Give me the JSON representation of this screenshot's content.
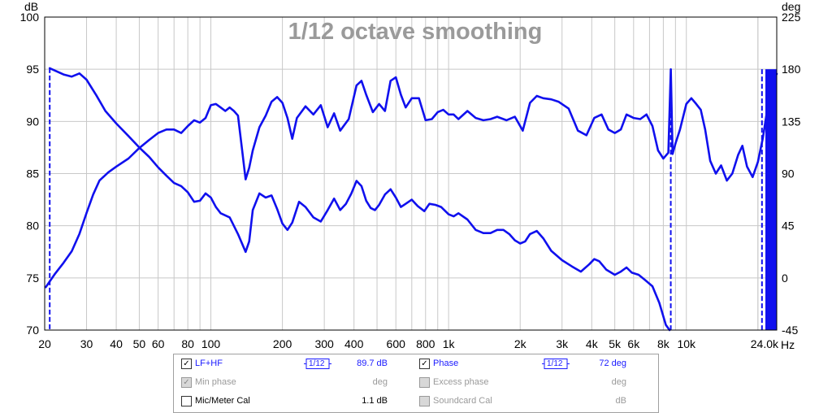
{
  "chart_data": {
    "type": "line",
    "title": "1/12 octave smoothing",
    "x_unit": "Hz",
    "y_left_unit": "dB",
    "y_right_unit": "deg",
    "xlim": [
      20,
      24000
    ],
    "x_scale": "log",
    "ylim_left": [
      70,
      100
    ],
    "ylim_right": [
      -45,
      225
    ],
    "grid": true,
    "x_ticks": [
      {
        "v": 20,
        "label": "20"
      },
      {
        "v": 30,
        "label": "30"
      },
      {
        "v": 40,
        "label": "40"
      },
      {
        "v": 50,
        "label": "50"
      },
      {
        "v": 60,
        "label": "60"
      },
      {
        "v": 80,
        "label": "80"
      },
      {
        "v": 100,
        "label": "100"
      },
      {
        "v": 200,
        "label": "200"
      },
      {
        "v": 300,
        "label": "300"
      },
      {
        "v": 400,
        "label": "400"
      },
      {
        "v": 600,
        "label": "600"
      },
      {
        "v": 800,
        "label": "800"
      },
      {
        "v": 1000,
        "label": "1k"
      },
      {
        "v": 2000,
        "label": "2k"
      },
      {
        "v": 3000,
        "label": "3k"
      },
      {
        "v": 4000,
        "label": "4k"
      },
      {
        "v": 5000,
        "label": "5k"
      },
      {
        "v": 6000,
        "label": "6k"
      },
      {
        "v": 8000,
        "label": "8k"
      },
      {
        "v": 10000,
        "label": "10k"
      },
      {
        "v": 24000,
        "label": "24.0k"
      }
    ],
    "y_left_ticks": [
      70,
      75,
      80,
      85,
      90,
      95,
      100
    ],
    "y_right_ticks": [
      -45,
      0,
      45,
      90,
      135,
      180,
      225
    ],
    "series": [
      {
        "name": "LF+HF",
        "axis": "left",
        "color": "#1010ee",
        "points": [
          [
            21,
            95.1
          ],
          [
            24,
            94.5
          ],
          [
            26,
            94.3
          ],
          [
            28,
            94.6
          ],
          [
            30,
            94.0
          ],
          [
            33,
            92.5
          ],
          [
            36,
            91.0
          ],
          [
            40,
            89.8
          ],
          [
            45,
            88.6
          ],
          [
            50,
            87.5
          ],
          [
            55,
            86.6
          ],
          [
            60,
            85.6
          ],
          [
            65,
            84.8
          ],
          [
            70,
            84.1
          ],
          [
            75,
            83.8
          ],
          [
            80,
            83.2
          ],
          [
            85,
            82.3
          ],
          [
            90,
            82.4
          ],
          [
            95,
            83.1
          ],
          [
            100,
            82.7
          ],
          [
            105,
            81.8
          ],
          [
            110,
            81.2
          ],
          [
            120,
            80.8
          ],
          [
            130,
            79.2
          ],
          [
            140,
            77.5
          ],
          [
            145,
            78.5
          ],
          [
            150,
            81.5
          ],
          [
            160,
            83.1
          ],
          [
            170,
            82.7
          ],
          [
            180,
            82.9
          ],
          [
            190,
            81.6
          ],
          [
            200,
            80.2
          ],
          [
            210,
            79.6
          ],
          [
            220,
            80.3
          ],
          [
            235,
            82.3
          ],
          [
            250,
            81.8
          ],
          [
            270,
            80.8
          ],
          [
            290,
            80.4
          ],
          [
            310,
            81.5
          ],
          [
            330,
            82.6
          ],
          [
            350,
            81.5
          ],
          [
            370,
            82.1
          ],
          [
            390,
            83.1
          ],
          [
            410,
            84.3
          ],
          [
            430,
            83.8
          ],
          [
            450,
            82.4
          ],
          [
            470,
            81.7
          ],
          [
            490,
            81.5
          ],
          [
            510,
            82.0
          ],
          [
            540,
            83.0
          ],
          [
            570,
            83.5
          ],
          [
            600,
            82.7
          ],
          [
            630,
            81.8
          ],
          [
            660,
            82.1
          ],
          [
            700,
            82.5
          ],
          [
            740,
            81.9
          ],
          [
            790,
            81.4
          ],
          [
            830,
            82.1
          ],
          [
            880,
            82.0
          ],
          [
            930,
            81.8
          ],
          [
            1000,
            81.1
          ],
          [
            1050,
            80.9
          ],
          [
            1100,
            81.2
          ],
          [
            1200,
            80.6
          ],
          [
            1300,
            79.6
          ],
          [
            1400,
            79.3
          ],
          [
            1500,
            79.3
          ],
          [
            1600,
            79.6
          ],
          [
            1700,
            79.6
          ],
          [
            1800,
            79.2
          ],
          [
            1900,
            78.6
          ],
          [
            2000,
            78.3
          ],
          [
            2100,
            78.5
          ],
          [
            2200,
            79.2
          ],
          [
            2350,
            79.5
          ],
          [
            2500,
            78.8
          ],
          [
            2700,
            77.6
          ],
          [
            3000,
            76.7
          ],
          [
            3300,
            76.1
          ],
          [
            3600,
            75.6
          ],
          [
            3900,
            76.3
          ],
          [
            4100,
            76.8
          ],
          [
            4300,
            76.6
          ],
          [
            4600,
            75.8
          ],
          [
            5000,
            75.3
          ],
          [
            5300,
            75.6
          ],
          [
            5600,
            76.0
          ],
          [
            5900,
            75.5
          ],
          [
            6300,
            75.3
          ],
          [
            6700,
            74.8
          ],
          [
            7200,
            74.2
          ],
          [
            7700,
            72.6
          ],
          [
            8200,
            70.5
          ],
          [
            8500,
            70.0
          ]
        ]
      },
      {
        "name": "Phase",
        "axis": "right",
        "color": "#1010ee",
        "points": [
          [
            20.2,
            -8
          ],
          [
            22,
            3
          ],
          [
            24,
            13
          ],
          [
            26,
            23
          ],
          [
            28,
            38
          ],
          [
            30,
            56
          ],
          [
            32,
            72
          ],
          [
            34,
            84
          ],
          [
            37,
            91
          ],
          [
            40,
            96
          ],
          [
            45,
            103
          ],
          [
            50,
            112
          ],
          [
            55,
            119
          ],
          [
            60,
            125
          ],
          [
            65,
            128
          ],
          [
            70,
            128
          ],
          [
            75,
            125
          ],
          [
            80,
            131
          ],
          [
            85,
            136
          ],
          [
            90,
            134
          ],
          [
            95,
            138
          ],
          [
            100,
            149
          ],
          [
            105,
            150
          ],
          [
            110,
            147
          ],
          [
            115,
            144
          ],
          [
            120,
            147
          ],
          [
            125,
            144
          ],
          [
            130,
            140
          ],
          [
            135,
            112
          ],
          [
            140,
            85
          ],
          [
            145,
            95
          ],
          [
            150,
            110
          ],
          [
            160,
            130
          ],
          [
            170,
            140
          ],
          [
            180,
            152
          ],
          [
            190,
            156
          ],
          [
            200,
            151
          ],
          [
            210,
            138
          ],
          [
            220,
            120
          ],
          [
            230,
            138
          ],
          [
            250,
            148
          ],
          [
            270,
            141
          ],
          [
            290,
            149
          ],
          [
            310,
            130
          ],
          [
            330,
            142
          ],
          [
            350,
            127
          ],
          [
            380,
            137
          ],
          [
            410,
            166
          ],
          [
            430,
            170
          ],
          [
            450,
            158
          ],
          [
            480,
            143
          ],
          [
            510,
            150
          ],
          [
            540,
            144
          ],
          [
            570,
            170
          ],
          [
            600,
            173
          ],
          [
            630,
            158
          ],
          [
            660,
            147
          ],
          [
            700,
            155
          ],
          [
            750,
            155
          ],
          [
            800,
            136
          ],
          [
            850,
            137
          ],
          [
            900,
            143
          ],
          [
            950,
            145
          ],
          [
            1000,
            141
          ],
          [
            1050,
            141
          ],
          [
            1100,
            137
          ],
          [
            1200,
            144
          ],
          [
            1300,
            138
          ],
          [
            1400,
            136
          ],
          [
            1500,
            137
          ],
          [
            1600,
            139
          ],
          [
            1750,
            136
          ],
          [
            1900,
            139
          ],
          [
            2050,
            127
          ],
          [
            2200,
            151
          ],
          [
            2350,
            157
          ],
          [
            2500,
            155
          ],
          [
            2700,
            154
          ],
          [
            2900,
            152
          ],
          [
            3200,
            146
          ],
          [
            3500,
            127
          ],
          [
            3800,
            123
          ],
          [
            4100,
            138
          ],
          [
            4400,
            141
          ],
          [
            4700,
            128
          ],
          [
            5000,
            125
          ],
          [
            5300,
            128
          ],
          [
            5600,
            141
          ],
          [
            6000,
            138
          ],
          [
            6400,
            137
          ],
          [
            6800,
            141
          ],
          [
            7200,
            131
          ],
          [
            7600,
            110
          ],
          [
            8000,
            103
          ],
          [
            8400,
            108
          ],
          [
            8600,
            180
          ],
          [
            8750,
            107
          ],
          [
            9000,
            116
          ],
          [
            9400,
            128
          ],
          [
            10000,
            150
          ],
          [
            10500,
            155
          ],
          [
            11000,
            150
          ],
          [
            11500,
            145
          ],
          [
            12000,
            128
          ],
          [
            12600,
            101
          ],
          [
            13300,
            90
          ],
          [
            14000,
            97
          ],
          [
            14800,
            84
          ],
          [
            15600,
            90
          ],
          [
            16500,
            106
          ],
          [
            17200,
            114
          ],
          [
            18000,
            96
          ],
          [
            19000,
            87
          ],
          [
            20000,
            100
          ],
          [
            21000,
            121
          ],
          [
            22000,
            148
          ],
          [
            23000,
            170
          ],
          [
            24000,
            176
          ]
        ]
      }
    ]
  },
  "legend": {
    "rows": [
      {
        "left_checked": true,
        "left_enabled": true,
        "left_label": "LF+HF",
        "left_smoothing": "1/12",
        "left_value": "89.7 dB",
        "right_checked": true,
        "right_enabled": true,
        "right_label": "Phase",
        "right_smoothing": "1/12",
        "right_value": "72 deg"
      },
      {
        "left_checked": true,
        "left_enabled": false,
        "left_label": "Min phase",
        "left_value": "deg",
        "right_checked": false,
        "right_enabled": false,
        "right_label": "Excess phase",
        "right_value": "deg"
      },
      {
        "left_checked": false,
        "left_enabled": true,
        "left_label": "Mic/Meter Cal",
        "left_value": "1.1 dB",
        "right_checked": false,
        "right_enabled": false,
        "right_label": "Soundcard Cal",
        "right_value": "dB"
      }
    ]
  }
}
